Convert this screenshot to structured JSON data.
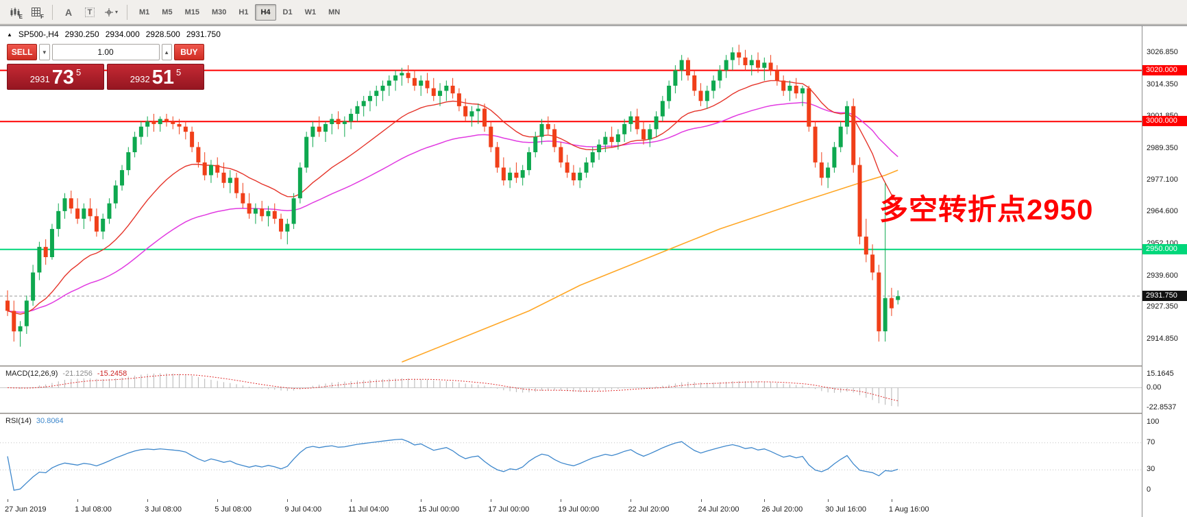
{
  "toolbar": {
    "icons": [
      {
        "name": "charts-icon",
        "sub": "E"
      },
      {
        "name": "grid-icon",
        "sub": "F"
      },
      {
        "name": "text-annotation-icon",
        "glyph": "A"
      },
      {
        "name": "text-box-icon",
        "glyph": "T"
      },
      {
        "name": "crosshair-icon",
        "caret": "▾"
      }
    ],
    "timeframes": [
      {
        "label": "M1",
        "active": false
      },
      {
        "label": "M5",
        "active": false
      },
      {
        "label": "M15",
        "active": false
      },
      {
        "label": "M30",
        "active": false
      },
      {
        "label": "H1",
        "active": false
      },
      {
        "label": "H4",
        "active": true
      },
      {
        "label": "D1",
        "active": false
      },
      {
        "label": "W1",
        "active": false
      },
      {
        "label": "MN",
        "active": false
      }
    ]
  },
  "symbol_info": {
    "marker": "▲",
    "symbol": "SP500-,H4",
    "open": "2930.250",
    "high": "2934.000",
    "low": "2928.500",
    "close": "2931.750"
  },
  "trade_panel": {
    "sell_label": "SELL",
    "buy_label": "BUY",
    "volume": "1.00",
    "combo_caret": "▼",
    "stepper_caret": "▲",
    "sell_tile": {
      "prefix": "2931",
      "big": "73",
      "sup": "5"
    },
    "buy_tile": {
      "prefix": "2932",
      "big": "51",
      "sup": "5"
    }
  },
  "annotation": {
    "text": "多空转折点2950"
  },
  "main_chart": {
    "hlines": [
      {
        "value": 3020.0,
        "color": "#ff0000",
        "width": 2
      },
      {
        "value": 3000.0,
        "color": "#ff0000",
        "width": 2
      },
      {
        "value": 2950.0,
        "color": "#00d77a",
        "width": 2
      }
    ],
    "current_price": {
      "value": 2931.75
    }
  },
  "price_axis": {
    "labels": [
      {
        "value": 3026.85,
        "text": "3026.850"
      },
      {
        "value": 3014.35,
        "text": "3014.350"
      },
      {
        "value": 3001.85,
        "text": "3001.850"
      },
      {
        "value": 2989.35,
        "text": "2989.350"
      },
      {
        "value": 2977.1,
        "text": "2977.100"
      },
      {
        "value": 2964.6,
        "text": "2964.600"
      },
      {
        "value": 2952.1,
        "text": "2952.100"
      },
      {
        "value": 2939.6,
        "text": "2939.600"
      },
      {
        "value": 2927.35,
        "text": "2927.350"
      },
      {
        "value": 2914.85,
        "text": "2914.850"
      }
    ],
    "tags": [
      {
        "value": 3020.0,
        "text": "3020.000",
        "bg": "#ff0000",
        "fg": "#ffffff"
      },
      {
        "value": 3000.0,
        "text": "3000.000",
        "bg": "#ff0000",
        "fg": "#ffffff"
      },
      {
        "value": 2950.0,
        "text": "2950.000",
        "bg": "#00d77a",
        "fg": "#ffffff"
      },
      {
        "value": 2931.75,
        "text": "2931.750",
        "bg": "#111111",
        "fg": "#ffffff"
      }
    ]
  },
  "macd_panel": {
    "title": "MACD(12,26,9)",
    "main_value": "-21.1256",
    "signal_value": "-15.2458",
    "params": {
      "fast": 12,
      "slow": 26,
      "signal": 9
    },
    "axis_labels": [
      {
        "value": 15.1645,
        "text": "15.1645"
      },
      {
        "value": 0,
        "text": "0.00"
      },
      {
        "value": -22.8537,
        "text": "-22.8537"
      }
    ]
  },
  "rsi_panel": {
    "title": "RSI(14)",
    "value": "30.8064",
    "period": 14,
    "levels": [
      70,
      30
    ],
    "axis_labels": [
      {
        "value": 100,
        "text": "100"
      },
      {
        "value": 70,
        "text": "70"
      },
      {
        "value": 30,
        "text": "30"
      },
      {
        "value": 0,
        "text": "0"
      }
    ]
  },
  "time_axis": {
    "labels": [
      {
        "bar": 0,
        "text": "27 Jun 2019"
      },
      {
        "bar": 11,
        "text": "1 Jul 08:00"
      },
      {
        "bar": 22,
        "text": "3 Jul 08:00"
      },
      {
        "bar": 33,
        "text": "5 Jul 08:00"
      },
      {
        "bar": 44,
        "text": "9 Jul 04:00"
      },
      {
        "bar": 54,
        "text": "11 Jul 04:00"
      },
      {
        "bar": 65,
        "text": "15 Jul 00:00"
      },
      {
        "bar": 76,
        "text": "17 Jul 00:00"
      },
      {
        "bar": 87,
        "text": "19 Jul 00:00"
      },
      {
        "bar": 98,
        "text": "22 Jul 20:00"
      },
      {
        "bar": 109,
        "text": "24 Jul 20:00"
      },
      {
        "bar": 119,
        "text": "26 Jul 20:00"
      },
      {
        "bar": 129,
        "text": "30 Jul 16:00"
      },
      {
        "bar": 139,
        "text": "1 Aug 16:00"
      }
    ]
  },
  "colors": {
    "bull": "#0ea84f",
    "bear": "#f03f19",
    "ma_fast": "#e5342a",
    "ma_mid": "#e13ae1",
    "ma_slow": "#ffa726",
    "rsi_line": "#3d87cc",
    "macd_hist": "#b4b4b4",
    "macd_signal": "#e03030",
    "level_dots": "#c0c0c0",
    "current_line": "#999999"
  },
  "chart_data": {
    "type": "candlestick",
    "symbol": "SP500-",
    "timeframe": "H4",
    "ma_fast_period": 20,
    "ma_mid_period": 50,
    "ma_slow_points": [
      [
        62,
        2906
      ],
      [
        72,
        2916
      ],
      [
        82,
        2926
      ],
      [
        90,
        2936
      ],
      [
        98,
        2944
      ],
      [
        106,
        2952
      ],
      [
        112,
        2958
      ],
      [
        118,
        2963
      ],
      [
        124,
        2968
      ],
      [
        129,
        2972
      ],
      [
        134,
        2976
      ],
      [
        138,
        2979
      ],
      [
        140,
        2981
      ]
    ],
    "candles": [
      [
        2930,
        2934,
        2924,
        2926
      ],
      [
        2926,
        2930,
        2914,
        2918
      ],
      [
        2918,
        2922,
        2912,
        2920
      ],
      [
        2920,
        2932,
        2917,
        2930
      ],
      [
        2930,
        2944,
        2928,
        2941
      ],
      [
        2941,
        2953,
        2938,
        2951
      ],
      [
        2951,
        2954,
        2944,
        2947
      ],
      [
        2947,
        2960,
        2946,
        2958
      ],
      [
        2958,
        2968,
        2955,
        2965
      ],
      [
        2965,
        2972,
        2962,
        2970
      ],
      [
        2970,
        2973,
        2964,
        2966
      ],
      [
        2966,
        2970,
        2960,
        2962
      ],
      [
        2962,
        2968,
        2958,
        2966
      ],
      [
        2966,
        2970,
        2961,
        2963
      ],
      [
        2963,
        2966,
        2955,
        2957
      ],
      [
        2957,
        2964,
        2954,
        2962
      ],
      [
        2962,
        2970,
        2960,
        2968
      ],
      [
        2968,
        2977,
        2966,
        2975
      ],
      [
        2975,
        2983,
        2973,
        2981
      ],
      [
        2981,
        2990,
        2979,
        2988
      ],
      [
        2988,
        2996,
        2986,
        2994
      ],
      [
        2994,
        3000,
        2991,
        2998
      ],
      [
        2998,
        3002,
        2994,
        3000
      ],
      [
        3000,
        3003,
        2996,
        2999
      ],
      [
        2999,
        3002,
        2996,
        3001
      ],
      [
        3001,
        3003,
        2998,
        3000
      ],
      [
        3000,
        3002,
        2997,
        2999
      ],
      [
        2999,
        3001,
        2995,
        2998
      ],
      [
        2998,
        3000,
        2993,
        2996
      ],
      [
        2996,
        2998,
        2988,
        2990
      ],
      [
        2990,
        2992,
        2982,
        2984
      ],
      [
        2984,
        2988,
        2977,
        2979
      ],
      [
        2979,
        2985,
        2976,
        2983
      ],
      [
        2983,
        2986,
        2978,
        2980
      ],
      [
        2980,
        2984,
        2974,
        2976
      ],
      [
        2976,
        2981,
        2972,
        2978
      ],
      [
        2978,
        2980,
        2970,
        2972
      ],
      [
        2972,
        2976,
        2966,
        2968
      ],
      [
        2968,
        2972,
        2962,
        2964
      ],
      [
        2964,
        2968,
        2960,
        2966
      ],
      [
        2966,
        2969,
        2961,
        2963
      ],
      [
        2963,
        2967,
        2959,
        2965
      ],
      [
        2965,
        2968,
        2960,
        2962
      ],
      [
        2962,
        2964,
        2954,
        2957
      ],
      [
        2957,
        2962,
        2952,
        2960
      ],
      [
        2960,
        2972,
        2958,
        2970
      ],
      [
        2970,
        2984,
        2968,
        2982
      ],
      [
        2982,
        2996,
        2980,
        2994
      ],
      [
        2994,
        3000,
        2990,
        2998
      ],
      [
        2998,
        3002,
        2994,
        2996
      ],
      [
        2996,
        3000,
        2992,
        2999
      ],
      [
        2999,
        3003,
        2995,
        3001
      ],
      [
        3001,
        3004,
        2997,
        2999
      ],
      [
        2999,
        3002,
        2994,
        3000
      ],
      [
        3000,
        3005,
        2997,
        3003
      ],
      [
        3003,
        3008,
        3000,
        3006
      ],
      [
        3006,
        3010,
        3002,
        3008
      ],
      [
        3008,
        3012,
        3004,
        3010
      ],
      [
        3010,
        3014,
        3006,
        3012
      ],
      [
        3012,
        3016,
        3008,
        3014
      ],
      [
        3014,
        3018,
        3010,
        3016
      ],
      [
        3016,
        3020,
        3012,
        3018
      ],
      [
        3018,
        3021,
        3014,
        3019
      ],
      [
        3019,
        3022,
        3015,
        3017
      ],
      [
        3017,
        3020,
        3012,
        3014
      ],
      [
        3014,
        3018,
        3010,
        3016
      ],
      [
        3016,
        3019,
        3011,
        3013
      ],
      [
        3013,
        3017,
        3008,
        3010
      ],
      [
        3010,
        3015,
        3006,
        3012
      ],
      [
        3012,
        3016,
        3008,
        3014
      ],
      [
        3014,
        3017,
        3009,
        3011
      ],
      [
        3011,
        3013,
        3004,
        3006
      ],
      [
        3006,
        3009,
        3000,
        3002
      ],
      [
        3002,
        3006,
        2998,
        3004
      ],
      [
        3004,
        3007,
        2999,
        3005
      ],
      [
        3005,
        3007,
        2996,
        2998
      ],
      [
        2998,
        3000,
        2988,
        2990
      ],
      [
        2990,
        2992,
        2980,
        2982
      ],
      [
        2982,
        2986,
        2975,
        2977
      ],
      [
        2977,
        2982,
        2974,
        2980
      ],
      [
        2980,
        2984,
        2976,
        2978
      ],
      [
        2978,
        2983,
        2975,
        2981
      ],
      [
        2981,
        2990,
        2979,
        2988
      ],
      [
        2988,
        2996,
        2986,
        2994
      ],
      [
        2994,
        3001,
        2991,
        2999
      ],
      [
        2999,
        3002,
        2995,
        2997
      ],
      [
        2997,
        2999,
        2988,
        2990
      ],
      [
        2990,
        2992,
        2982,
        2984
      ],
      [
        2984,
        2987,
        2978,
        2980
      ],
      [
        2980,
        2983,
        2975,
        2977
      ],
      [
        2977,
        2982,
        2974,
        2980
      ],
      [
        2980,
        2986,
        2978,
        2984
      ],
      [
        2984,
        2990,
        2982,
        2988
      ],
      [
        2988,
        2993,
        2985,
        2991
      ],
      [
        2991,
        2996,
        2988,
        2994
      ],
      [
        2994,
        2998,
        2990,
        2992
      ],
      [
        2992,
        2997,
        2989,
        2995
      ],
      [
        2995,
        3001,
        2992,
        2999
      ],
      [
        2999,
        3004,
        2996,
        3002
      ],
      [
        3002,
        3005,
        2995,
        2997
      ],
      [
        2997,
        3000,
        2991,
        2993
      ],
      [
        2993,
        2999,
        2990,
        2997
      ],
      [
        2997,
        3004,
        2994,
        3002
      ],
      [
        3002,
        3010,
        3000,
        3008
      ],
      [
        3008,
        3016,
        3005,
        3014
      ],
      [
        3014,
        3022,
        3011,
        3020
      ],
      [
        3020,
        3026,
        3016,
        3024
      ],
      [
        3024,
        3025,
        3016,
        3018
      ],
      [
        3018,
        3020,
        3010,
        3012
      ],
      [
        3012,
        3015,
        3006,
        3008
      ],
      [
        3008,
        3014,
        3005,
        3012
      ],
      [
        3012,
        3018,
        3009,
        3016
      ],
      [
        3016,
        3022,
        3013,
        3020
      ],
      [
        3020,
        3026,
        3017,
        3024
      ],
      [
        3024,
        3029,
        3020,
        3027
      ],
      [
        3027,
        3030,
        3022,
        3025
      ],
      [
        3025,
        3028,
        3020,
        3022
      ],
      [
        3022,
        3026,
        3018,
        3024
      ],
      [
        3024,
        3027,
        3019,
        3021
      ],
      [
        3021,
        3025,
        3016,
        3023
      ],
      [
        3023,
        3026,
        3018,
        3020
      ],
      [
        3020,
        3022,
        3014,
        3016
      ],
      [
        3016,
        3018,
        3010,
        3012
      ],
      [
        3012,
        3016,
        3008,
        3014
      ],
      [
        3014,
        3017,
        3009,
        3011
      ],
      [
        3011,
        3014,
        3006,
        3013
      ],
      [
        3013,
        3014,
        2996,
        2998
      ],
      [
        2998,
        3000,
        2982,
        2984
      ],
      [
        2984,
        2988,
        2975,
        2978
      ],
      [
        2978,
        2984,
        2974,
        2982
      ],
      [
        2982,
        2992,
        2980,
        2990
      ],
      [
        2990,
        3000,
        2988,
        2998
      ],
      [
        2998,
        3008,
        2995,
        3006
      ],
      [
        3006,
        3009,
        2980,
        2983
      ],
      [
        2983,
        2986,
        2952,
        2955
      ],
      [
        2955,
        2962,
        2945,
        2948
      ],
      [
        2948,
        2952,
        2938,
        2941
      ],
      [
        2941,
        2944,
        2914,
        2918
      ],
      [
        2918,
        2976,
        2914,
        2931
      ],
      [
        2931,
        2935,
        2924,
        2927
      ],
      [
        2930.25,
        2934,
        2928.5,
        2931.75
      ]
    ]
  }
}
